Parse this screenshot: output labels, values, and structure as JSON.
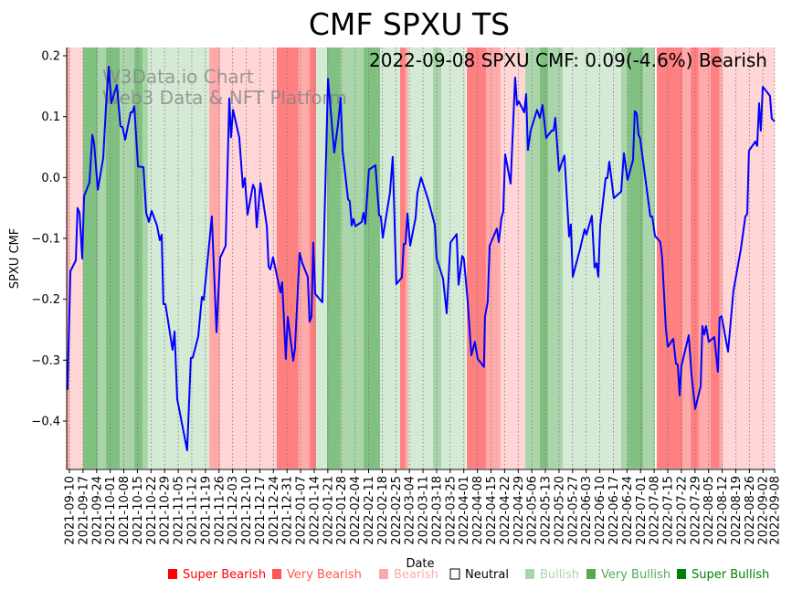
{
  "chart_data": {
    "type": "line",
    "title": "CMF SPXU TS",
    "annotation": "2022-09-08 SPXU CMF: 0.09(-4.6%) Bearish",
    "watermark": [
      "W3Data.io Chart",
      "Web3 Data & NFT Platform"
    ],
    "xlabel": "Date",
    "ylabel": "SPXU CMF",
    "start_date": "2021-09-10",
    "x_unit": "days since start_date",
    "xlim": [
      -1.4,
      363
    ],
    "ylim": [
      -0.48,
      0.213
    ],
    "yticks": [
      0.2,
      0.1,
      0.0,
      -0.1,
      -0.2,
      -0.3,
      -0.4
    ],
    "ytick_labels": [
      "0.2",
      "0.1",
      "0.0",
      "−0.1",
      "−0.2",
      "−0.3",
      "−0.4"
    ],
    "xtick_days": [
      0,
      7,
      14,
      21,
      28,
      35,
      42,
      49,
      56,
      63,
      70,
      77,
      84,
      91,
      98,
      105,
      112,
      119,
      126,
      133,
      140,
      147,
      154,
      161,
      168,
      175,
      182,
      189,
      196,
      203,
      210,
      217,
      224,
      231,
      238,
      245,
      252,
      259,
      266,
      273,
      280,
      287,
      294,
      301,
      308,
      315,
      322,
      329,
      336,
      343,
      350,
      357,
      363
    ],
    "xtick_labels": [
      "2021-09-10",
      "2021-09-17",
      "2021-09-24",
      "2021-10-01",
      "2021-10-08",
      "2021-10-15",
      "2021-10-22",
      "2021-10-29",
      "2021-11-05",
      "2021-11-12",
      "2021-11-19",
      "2021-11-26",
      "2021-12-03",
      "2021-12-10",
      "2021-12-17",
      "2021-12-24",
      "2021-12-31",
      "2022-01-07",
      "2022-01-14",
      "2022-01-21",
      "2022-01-28",
      "2022-02-04",
      "2022-02-11",
      "2022-02-18",
      "2022-02-25",
      "2022-03-04",
      "2022-03-11",
      "2022-03-18",
      "2022-03-25",
      "2022-04-01",
      "2022-04-08",
      "2022-04-15",
      "2022-04-22",
      "2022-04-29",
      "2022-05-06",
      "2022-05-13",
      "2022-05-20",
      "2022-05-27",
      "2022-06-03",
      "2022-06-10",
      "2022-06-17",
      "2022-06-24",
      "2022-07-01",
      "2022-07-08",
      "2022-07-15",
      "2022-07-22",
      "2022-07-29",
      "2022-08-05",
      "2022-08-12",
      "2022-08-19",
      "2022-08-26",
      "2022-09-02",
      "2022-09-08"
    ],
    "grid": "vertical dotted",
    "legend_placement": "bottom",
    "legend": [
      {
        "label": "Super Bearish",
        "color": "#ff0000"
      },
      {
        "label": "Very Bearish",
        "color": "#ff5555"
      },
      {
        "label": "Bearish",
        "color": "#ffaaaa"
      },
      {
        "label": "Neutral",
        "color": "#ffffff"
      },
      {
        "label": "Bullish",
        "color": "#aad5aa"
      },
      {
        "label": "Very Bullish",
        "color": "#55aa55"
      },
      {
        "label": "Super Bullish",
        "color": "#008000"
      }
    ],
    "band_colors": {
      "Super Bearish": "#ff8080",
      "Very Bearish": "#ffaaaa",
      "Bearish": "#ffd5d5",
      "Bullish": "#d5ead5",
      "Very Bullish": "#aad5aa",
      "Super Bullish": "#80c080"
    },
    "line_color": "#0000ff",
    "bands": [
      [
        -1.4,
        0,
        "Very Bearish"
      ],
      [
        0,
        7,
        "Bearish"
      ],
      [
        7,
        14.6,
        "Super Bullish"
      ],
      [
        14.6,
        18.8,
        "Very Bullish"
      ],
      [
        18.8,
        25.9,
        "Super Bullish"
      ],
      [
        25.9,
        33.4,
        "Very Bullish"
      ],
      [
        33.4,
        37.6,
        "Super Bullish"
      ],
      [
        37.6,
        40.4,
        "Very Bullish"
      ],
      [
        40.4,
        72,
        "Bullish"
      ],
      [
        72,
        77.6,
        "Very Bearish"
      ],
      [
        77.6,
        106.7,
        "Bearish"
      ],
      [
        106.7,
        118,
        "Super Bearish"
      ],
      [
        118,
        123.6,
        "Very Bearish"
      ],
      [
        123.6,
        127,
        "Super Bearish"
      ],
      [
        127,
        132.6,
        "Bullish"
      ],
      [
        132.6,
        139.6,
        "Super Bullish"
      ],
      [
        139.6,
        151.4,
        "Very Bullish"
      ],
      [
        151.4,
        159.9,
        "Super Bullish"
      ],
      [
        159.9,
        170.2,
        "Bullish"
      ],
      [
        170.2,
        173,
        "Super Bearish"
      ],
      [
        173,
        174.4,
        "Very Bearish"
      ],
      [
        174.4,
        187.1,
        "Bullish"
      ],
      [
        187.1,
        191.4,
        "Very Bullish"
      ],
      [
        191.4,
        204,
        "Bullish"
      ],
      [
        204.5,
        214.4,
        "Super Bearish"
      ],
      [
        214.4,
        221.9,
        "Very Bearish"
      ],
      [
        221.9,
        234.6,
        "Bearish"
      ],
      [
        234.6,
        242.1,
        "Very Bullish"
      ],
      [
        242.1,
        246.4,
        "Super Bullish"
      ],
      [
        246.4,
        253.9,
        "Very Bullish"
      ],
      [
        253.9,
        284,
        "Bullish"
      ],
      [
        284,
        287.3,
        "Very Bullish"
      ],
      [
        287.3,
        295.3,
        "Super Bullish"
      ],
      [
        295.3,
        301.4,
        "Very Bullish"
      ],
      [
        302.3,
        315.5,
        "Super Bearish"
      ],
      [
        315.5,
        319.7,
        "Very Bearish"
      ],
      [
        319.7,
        323.9,
        "Super Bearish"
      ],
      [
        323.9,
        330,
        "Very Bearish"
      ],
      [
        330,
        334.7,
        "Super Bearish"
      ],
      [
        334.7,
        336.2,
        "Very Bearish"
      ],
      [
        336.2,
        363,
        "Bearish"
      ]
    ],
    "series": [
      {
        "name": "SPXU CMF",
        "points": [
          [
            -1,
            -0.349
          ],
          [
            0.5,
            -0.154
          ],
          [
            3.3,
            -0.136
          ],
          [
            4.2,
            -0.05
          ],
          [
            5.2,
            -0.058
          ],
          [
            6.6,
            -0.133
          ],
          [
            7.5,
            -0.031
          ],
          [
            10.3,
            -0.008
          ],
          [
            11.8,
            0.07
          ],
          [
            12.7,
            0.056
          ],
          [
            14.6,
            -0.02
          ],
          [
            17.4,
            0.032
          ],
          [
            18.8,
            0.116
          ],
          [
            20.2,
            0.182
          ],
          [
            21.6,
            0.122
          ],
          [
            24.4,
            0.152
          ],
          [
            26.3,
            0.084
          ],
          [
            27.3,
            0.083
          ],
          [
            28.7,
            0.062
          ],
          [
            31.5,
            0.107
          ],
          [
            32.4,
            0.107
          ],
          [
            33.4,
            0.117
          ],
          [
            35.3,
            0.018
          ],
          [
            38.1,
            0.017
          ],
          [
            39.5,
            -0.058
          ],
          [
            40.9,
            -0.073
          ],
          [
            42.3,
            -0.055
          ],
          [
            45.1,
            -0.079
          ],
          [
            46.5,
            -0.103
          ],
          [
            47.5,
            -0.094
          ],
          [
            48.4,
            -0.208
          ],
          [
            49.4,
            -0.208
          ],
          [
            53.1,
            -0.283
          ],
          [
            54.1,
            -0.253
          ],
          [
            55.5,
            -0.364
          ],
          [
            60.6,
            -0.448
          ],
          [
            62.5,
            -0.296
          ],
          [
            63.5,
            -0.296
          ],
          [
            66.3,
            -0.261
          ],
          [
            68.2,
            -0.196
          ],
          [
            69.1,
            -0.201
          ],
          [
            73.3,
            -0.064
          ],
          [
            75.7,
            -0.254
          ],
          [
            77.6,
            -0.132
          ],
          [
            80.4,
            -0.112
          ],
          [
            82.3,
            0.13
          ],
          [
            83.2,
            0.066
          ],
          [
            84.2,
            0.111
          ],
          [
            87.4,
            0.066
          ],
          [
            89.3,
            -0.016
          ],
          [
            90.3,
            -0.001
          ],
          [
            91.7,
            -0.061
          ],
          [
            94.5,
            -0.012
          ],
          [
            95.4,
            -0.019
          ],
          [
            96.4,
            -0.082
          ],
          [
            98.3,
            -0.009
          ],
          [
            101.6,
            -0.08
          ],
          [
            102.5,
            -0.146
          ],
          [
            103.4,
            -0.151
          ],
          [
            104.8,
            -0.131
          ],
          [
            108.6,
            -0.189
          ],
          [
            109.5,
            -0.172
          ],
          [
            111.4,
            -0.298
          ],
          [
            112.4,
            -0.229
          ],
          [
            115.2,
            -0.301
          ],
          [
            116.1,
            -0.281
          ],
          [
            118.5,
            -0.124
          ],
          [
            119.9,
            -0.141
          ],
          [
            122.7,
            -0.163
          ],
          [
            123.6,
            -0.237
          ],
          [
            124.6,
            -0.229
          ],
          [
            125.5,
            -0.107
          ],
          [
            126.5,
            -0.191
          ],
          [
            130.2,
            -0.205
          ],
          [
            133.1,
            0.162
          ],
          [
            136.3,
            0.041
          ],
          [
            138.2,
            0.086
          ],
          [
            139.6,
            0.131
          ],
          [
            140.6,
            0.044
          ],
          [
            143.4,
            -0.036
          ],
          [
            144.3,
            -0.039
          ],
          [
            145.3,
            -0.079
          ],
          [
            146.2,
            -0.068
          ],
          [
            147.2,
            -0.08
          ],
          [
            150.4,
            -0.073
          ],
          [
            151.4,
            -0.058
          ],
          [
            152.3,
            -0.076
          ],
          [
            154.2,
            0.013
          ],
          [
            157.5,
            0.02
          ],
          [
            159.4,
            -0.062
          ],
          [
            160.3,
            -0.064
          ],
          [
            161.3,
            -0.099
          ],
          [
            165.0,
            -0.025
          ],
          [
            166.4,
            0.034
          ],
          [
            168.3,
            -0.175
          ],
          [
            171.1,
            -0.164
          ],
          [
            172.1,
            -0.109
          ],
          [
            173.0,
            -0.109
          ],
          [
            174.0,
            -0.059
          ],
          [
            175.4,
            -0.112
          ],
          [
            178.2,
            -0.066
          ],
          [
            179.1,
            -0.026
          ],
          [
            181.0,
            0.0
          ],
          [
            184.8,
            -0.038
          ],
          [
            188.1,
            -0.078
          ],
          [
            189.0,
            -0.133
          ],
          [
            192.3,
            -0.166
          ],
          [
            194.2,
            -0.223
          ],
          [
            196.1,
            -0.107
          ],
          [
            199.3,
            -0.093
          ],
          [
            200.3,
            -0.176
          ],
          [
            202.2,
            -0.129
          ],
          [
            203.1,
            -0.134
          ],
          [
            205.0,
            -0.204
          ],
          [
            206.9,
            -0.292
          ],
          [
            208.7,
            -0.27
          ],
          [
            210.2,
            -0.298
          ],
          [
            213.4,
            -0.311
          ],
          [
            213.9,
            -0.229
          ],
          [
            215.3,
            -0.204
          ],
          [
            216.3,
            -0.112
          ],
          [
            220.0,
            -0.084
          ],
          [
            221.0,
            -0.106
          ],
          [
            222.4,
            -0.066
          ],
          [
            223.3,
            -0.056
          ],
          [
            224.3,
            0.038
          ],
          [
            227.1,
            -0.01
          ],
          [
            229.4,
            0.164
          ],
          [
            230.4,
            0.119
          ],
          [
            231.3,
            0.125
          ],
          [
            234.1,
            0.107
          ],
          [
            235.1,
            0.137
          ],
          [
            236.0,
            0.045
          ],
          [
            237.4,
            0.077
          ],
          [
            240.7,
            0.111
          ],
          [
            242.1,
            0.098
          ],
          [
            243.5,
            0.119
          ],
          [
            245.4,
            0.065
          ],
          [
            248.2,
            0.077
          ],
          [
            249.2,
            0.077
          ],
          [
            250.1,
            0.098
          ],
          [
            252.0,
            0.011
          ],
          [
            254.8,
            0.036
          ],
          [
            257.2,
            -0.097
          ],
          [
            258.1,
            -0.077
          ],
          [
            259.1,
            -0.163
          ],
          [
            262.8,
            -0.118
          ],
          [
            265.2,
            -0.085
          ],
          [
            266.1,
            -0.094
          ],
          [
            268.9,
            -0.063
          ],
          [
            270.3,
            -0.148
          ],
          [
            271.3,
            -0.141
          ],
          [
            272.2,
            -0.163
          ],
          [
            273.2,
            -0.08
          ],
          [
            276.0,
            -0.001
          ],
          [
            276.9,
            -0.001
          ],
          [
            277.9,
            0.026
          ],
          [
            280.2,
            -0.034
          ],
          [
            284.0,
            -0.023
          ],
          [
            285.4,
            0.04
          ],
          [
            287.3,
            -0.004
          ],
          [
            290.1,
            0.029
          ],
          [
            291.0,
            0.109
          ],
          [
            292.0,
            0.105
          ],
          [
            292.9,
            0.071
          ],
          [
            293.8,
            0.064
          ],
          [
            299.0,
            -0.064
          ],
          [
            300.0,
            -0.064
          ],
          [
            301.4,
            -0.096
          ],
          [
            304.2,
            -0.106
          ],
          [
            305.1,
            -0.133
          ],
          [
            307.0,
            -0.248
          ],
          [
            308.0,
            -0.278
          ],
          [
            310.8,
            -0.265
          ],
          [
            312.2,
            -0.306
          ],
          [
            313.1,
            -0.307
          ],
          [
            314.1,
            -0.358
          ],
          [
            315.0,
            -0.31
          ],
          [
            318.8,
            -0.259
          ],
          [
            320.2,
            -0.324
          ],
          [
            322.1,
            -0.38
          ],
          [
            324.9,
            -0.343
          ],
          [
            325.8,
            -0.244
          ],
          [
            326.8,
            -0.258
          ],
          [
            327.7,
            -0.244
          ],
          [
            329.1,
            -0.27
          ],
          [
            331.9,
            -0.262
          ],
          [
            333.8,
            -0.319
          ],
          [
            334.7,
            -0.23
          ],
          [
            335.7,
            -0.228
          ],
          [
            339.0,
            -0.286
          ],
          [
            341.8,
            -0.186
          ],
          [
            345.6,
            -0.118
          ],
          [
            347.9,
            -0.064
          ],
          [
            348.9,
            -0.06
          ],
          [
            349.8,
            0.044
          ],
          [
            353.1,
            0.059
          ],
          [
            354.0,
            0.052
          ],
          [
            355.0,
            0.122
          ],
          [
            355.9,
            0.077
          ],
          [
            356.9,
            0.149
          ],
          [
            360.6,
            0.134
          ],
          [
            361.5,
            0.097
          ],
          [
            363,
            0.092
          ]
        ]
      }
    ]
  }
}
